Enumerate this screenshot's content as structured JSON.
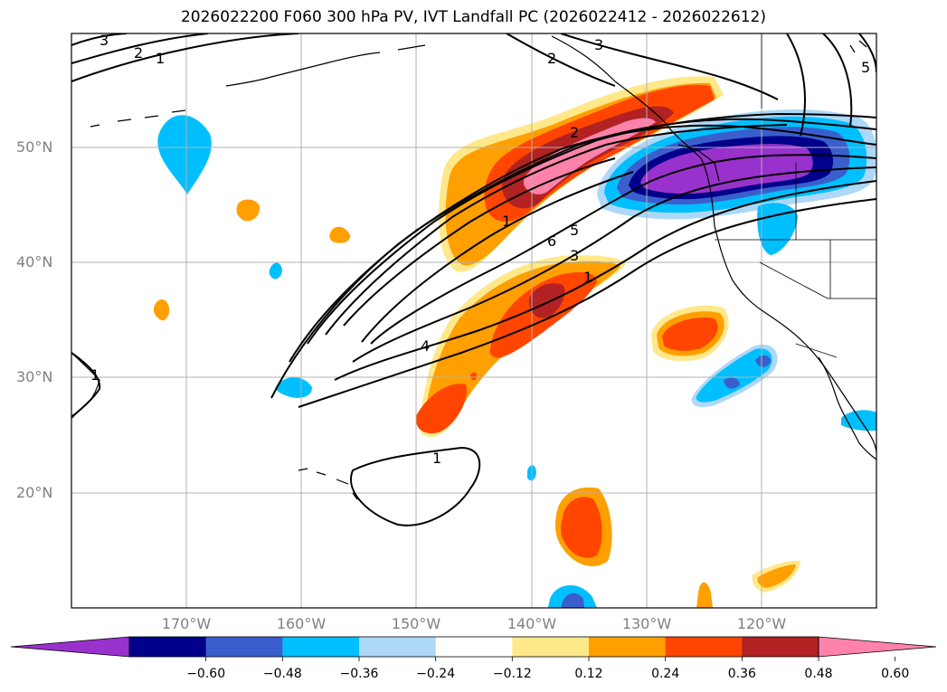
{
  "title": "2026022200 F060 300 hPa PV, IVT Landfall PC (2026022412 - 2026022612)",
  "map": {
    "lat_labels": [
      "50°N",
      "40°N",
      "30°N",
      "20°N"
    ],
    "lon_labels": [
      "170°W",
      "160°W",
      "150°W",
      "140°W",
      "130°W",
      "120°W"
    ],
    "lat_range": [
      10,
      60
    ],
    "lon_range": [
      -180,
      -110
    ],
    "contour_labels": [
      "3",
      "2",
      "1",
      "2",
      "3",
      "2",
      "1",
      "6",
      "5",
      "3",
      "1",
      "4",
      "1",
      "1",
      "5"
    ]
  },
  "colorbar": {
    "tick_labels": [
      "−0.60",
      "−0.48",
      "−0.36",
      "−0.24",
      "−0.12",
      "0.12",
      "0.24",
      "0.36",
      "0.48",
      "0.60"
    ],
    "colors": [
      "#9932cc",
      "#00008b",
      "#3a5fcd",
      "#00bfff",
      "#add8f7",
      "#ffffff",
      "#ffe88a",
      "#ff9f00",
      "#ff4500",
      "#b22222",
      "#ff82ab"
    ]
  }
}
